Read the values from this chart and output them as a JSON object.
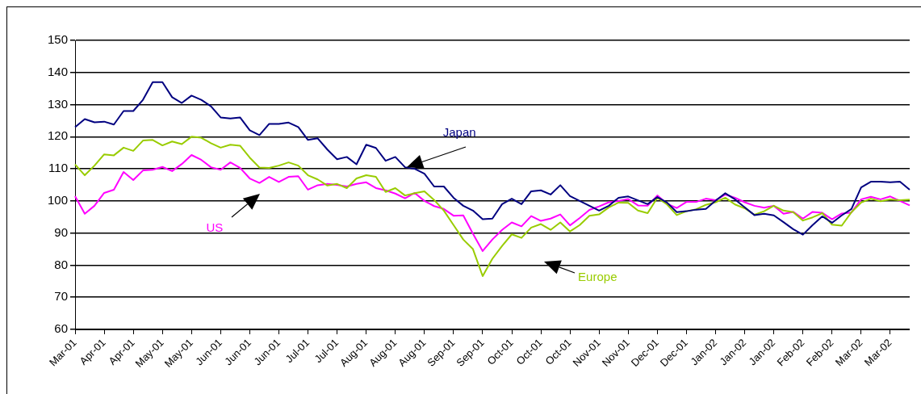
{
  "chart_data": {
    "type": "line",
    "categories": [
      "Mar-01",
      null,
      null,
      "Apr-01",
      null,
      null,
      "Apr-01",
      null,
      null,
      "May-01",
      null,
      null,
      "May-01",
      null,
      null,
      "Jun-01",
      null,
      null,
      "Jun-01",
      null,
      null,
      "Jun-01",
      null,
      null,
      "Jul-01",
      null,
      null,
      "Jul-01",
      null,
      null,
      "Aug-01",
      null,
      null,
      "Aug-01",
      null,
      null,
      "Aug-01",
      null,
      null,
      "Sep-01",
      null,
      null,
      "Sep-01",
      null,
      null,
      "Oct-01",
      null,
      null,
      "Oct-01",
      null,
      null,
      "Oct-01",
      null,
      null,
      "Nov-01",
      null,
      null,
      "Nov-01",
      null,
      null,
      "Dec-01",
      null,
      null,
      "Dec-01",
      null,
      null,
      "Jan-02",
      null,
      null,
      "Jan-02",
      null,
      null,
      "Jan-02",
      null,
      null,
      "Feb-02",
      null,
      null,
      "Feb-02",
      null,
      null,
      "Mar-02",
      null,
      null,
      "Mar-02",
      null,
      null
    ],
    "series": [
      {
        "name": "Japan",
        "color": "#000080",
        "values": [
          123,
          125.5,
          124.5,
          124.7,
          123.8,
          128,
          128,
          131.5,
          137,
          137,
          132.3,
          130.5,
          132.8,
          131.5,
          129.5,
          126,
          125.7,
          126,
          122,
          120.5,
          124,
          124,
          124.4,
          123,
          119,
          119.5,
          116,
          113,
          113.7,
          111.4,
          117.5,
          116.5,
          112.5,
          113.7,
          110.5,
          110,
          108.5,
          104.5,
          104.5,
          101,
          98.5,
          97,
          94.3,
          94.5,
          99,
          100.7,
          99,
          103,
          103.3,
          102,
          104.9,
          101.5,
          100,
          98.5,
          97,
          98.5,
          101,
          101.4,
          100.2,
          99,
          101.2,
          99.5,
          96.5,
          96.8,
          97.3,
          97.5,
          100.1,
          102.4,
          100.5,
          98,
          95.6,
          96,
          95.5,
          93.4,
          91.2,
          89.5,
          92.5,
          95.2,
          93.2,
          95.5,
          97.5,
          104.2,
          106,
          106,
          105.8,
          106,
          103.5
        ]
      },
      {
        "name": "Europe",
        "color": "#99cc00",
        "values": [
          111.4,
          108,
          111,
          114.5,
          114.2,
          116.6,
          115.6,
          118.8,
          119,
          117.3,
          118.5,
          117.7,
          120,
          119.7,
          118,
          116.6,
          117.5,
          117.2,
          113.5,
          110.4,
          110.3,
          111,
          112,
          111,
          108,
          106.7,
          104.8,
          105.3,
          104,
          107,
          108,
          107.5,
          102.8,
          104,
          101.7,
          102.4,
          103,
          100.3,
          97,
          92.5,
          88,
          85,
          76.6,
          82,
          86,
          89.6,
          88.5,
          91.7,
          92.8,
          91,
          93.3,
          90.5,
          92.5,
          95.4,
          95.8,
          98,
          99.5,
          99.4,
          97,
          96.2,
          101,
          98.9,
          95.6,
          96.8,
          97.4,
          98.8,
          99.6,
          101,
          98.9,
          97.7,
          95.7,
          96.8,
          98.5,
          97,
          96.5,
          93.9,
          94.9,
          96.2,
          92.6,
          92.3,
          96.5,
          99.5,
          100.7,
          99.9,
          100.5,
          100.2,
          100.4
        ]
      },
      {
        "name": "US",
        "color": "#ff00ff",
        "values": [
          101.5,
          96,
          98.5,
          102.5,
          103.5,
          109,
          106.5,
          109.5,
          109.7,
          110.6,
          109.3,
          111.5,
          114.3,
          112.8,
          110.5,
          109.7,
          112,
          110.3,
          107,
          105.6,
          107.5,
          105.9,
          107.5,
          107.7,
          103.5,
          104.9,
          105.3,
          105,
          104.5,
          105.3,
          105.8,
          104,
          103.3,
          102.3,
          100.8,
          102.5,
          100,
          98.4,
          97.5,
          95.4,
          95.5,
          89.8,
          84.4,
          88,
          91,
          93.3,
          92.1,
          95.3,
          93.8,
          94.5,
          95.8,
          92.4,
          94.7,
          97.2,
          98.3,
          99.6,
          100,
          100.6,
          98.6,
          98.5,
          101.7,
          99.1,
          97.8,
          99.7,
          99.7,
          100.7,
          100.2,
          102,
          101,
          99.6,
          98.5,
          97.9,
          98.5,
          96,
          96.6,
          94.5,
          96.6,
          96.3,
          94.3,
          96.1,
          96.4,
          100.5,
          101.3,
          100.5,
          101.4,
          100,
          98.6
        ]
      }
    ],
    "ylim": [
      60,
      150
    ],
    "yticks": [
      60,
      70,
      80,
      90,
      100,
      110,
      120,
      130,
      140,
      150
    ],
    "grid": "y",
    "legend": false
  }
}
